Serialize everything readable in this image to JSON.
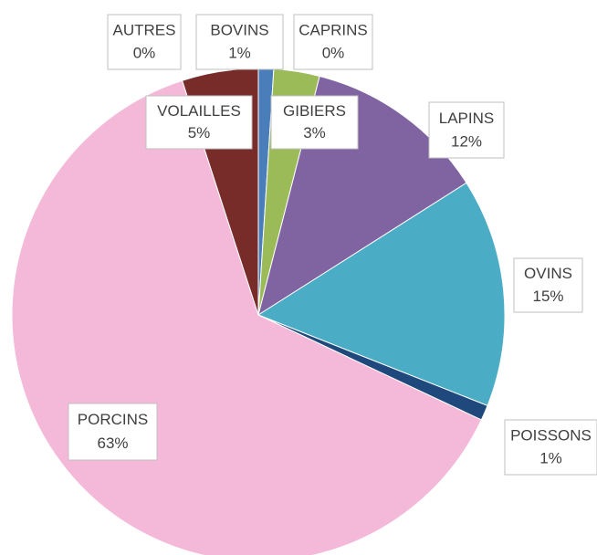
{
  "chart_data": {
    "type": "pie",
    "categories": [
      "AUTRES",
      "BOVINS",
      "CAPRINS",
      "GIBIERS",
      "LAPINS",
      "OVINS",
      "POISSONS",
      "PORCINS",
      "VOLAILLES"
    ],
    "values": [
      0,
      1,
      0,
      3,
      12,
      15,
      1,
      63,
      5
    ],
    "value_labels": [
      "0%",
      "1%",
      "0%",
      "3%",
      "12%",
      "15%",
      "1%",
      "63%",
      "5%"
    ],
    "colors": [
      "#3f6fb5",
      "#4a7ebb",
      "#c0504d",
      "#9bbb59",
      "#8064a2",
      "#4bacc6",
      "#1f497d",
      "#f4b9d9",
      "#772c2a"
    ]
  }
}
